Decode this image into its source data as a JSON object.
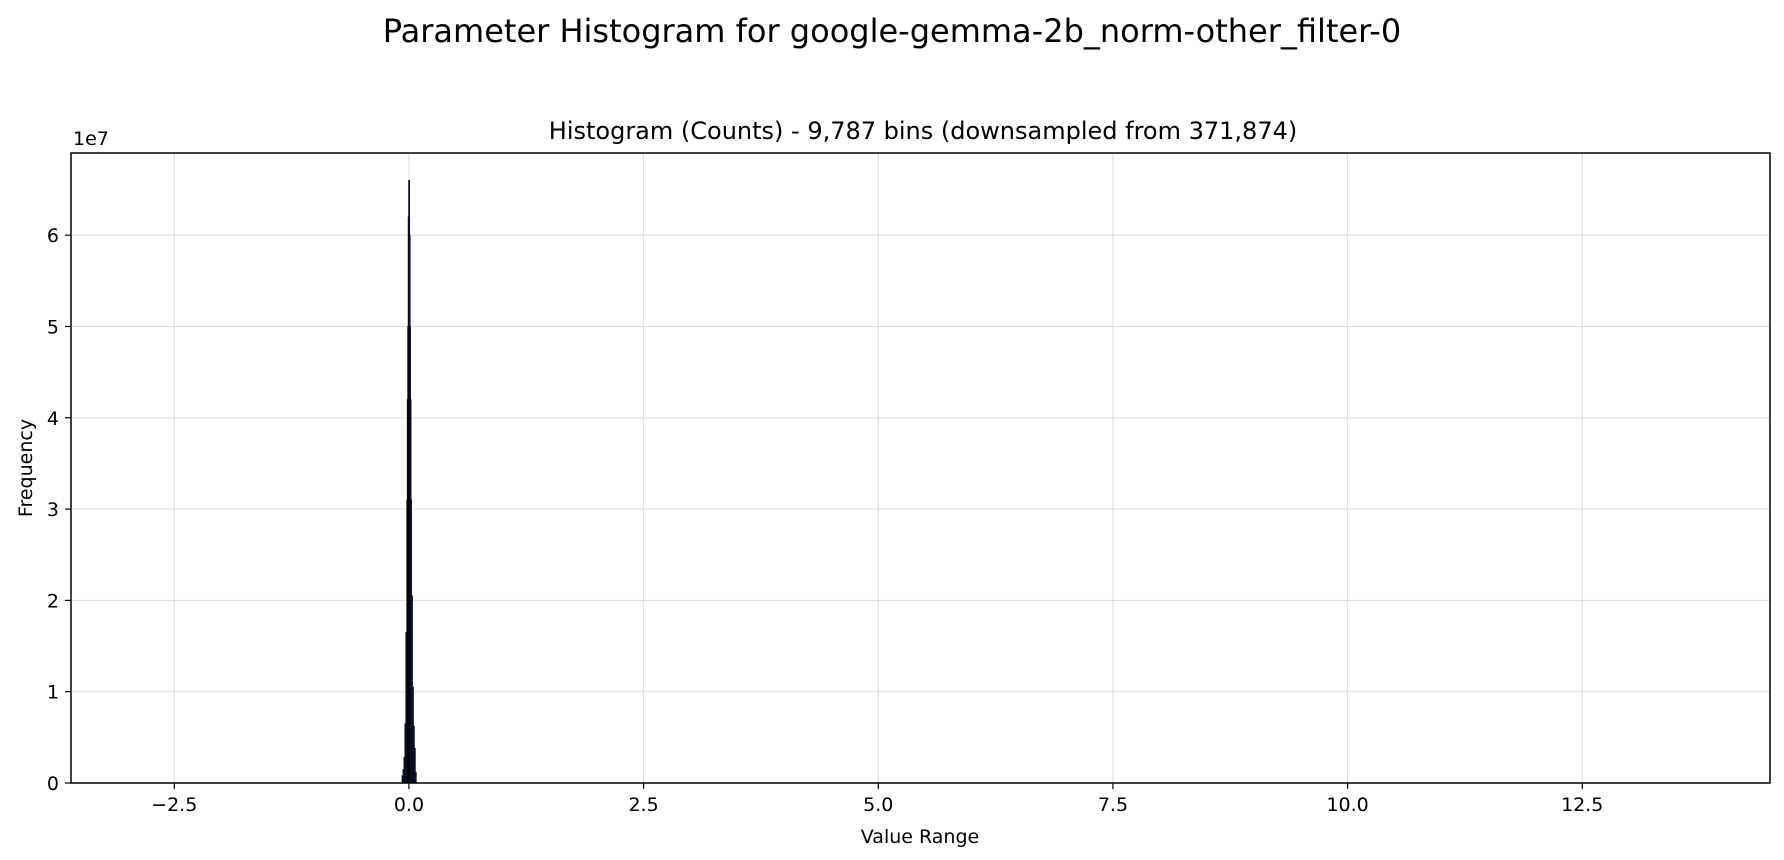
{
  "figure": {
    "suptitle": "Parameter Histogram for google-gemma-2b_norm-other_filter-0"
  },
  "chart_data": {
    "type": "bar",
    "title": "Histogram (Counts) - 9,787 bins (downsampled from 371,874)",
    "xlabel": "Value Range",
    "ylabel": "Frequency",
    "y_offset_label": "1e7",
    "xlim": [
      -3.6,
      14.5
    ],
    "ylim": [
      0,
      69000000
    ],
    "x_ticks": [
      -2.5,
      0.0,
      2.5,
      5.0,
      7.5,
      10.0,
      12.5
    ],
    "x_tick_labels": [
      "−2.5",
      "0.0",
      "2.5",
      "5.0",
      "7.5",
      "10.0",
      "12.5"
    ],
    "y_ticks": [
      0,
      10000000,
      20000000,
      30000000,
      40000000,
      50000000,
      60000000
    ],
    "y_tick_labels": [
      "0",
      "1",
      "2",
      "3",
      "4",
      "5",
      "6"
    ],
    "grid": true,
    "bar_color": "#1f2a5a",
    "edge_color": "#000000",
    "x": [
      -0.07,
      -0.06,
      -0.05,
      -0.04,
      -0.03,
      -0.02,
      -0.015,
      -0.01,
      -0.005,
      0.0,
      0.005,
      0.01,
      0.015,
      0.02,
      0.03,
      0.04,
      0.05,
      0.06,
      0.07
    ],
    "values": [
      800000,
      1500000,
      2800000,
      6500000,
      16500000,
      31000000,
      42000000,
      50000000,
      62000000,
      66000000,
      60000000,
      50000000,
      42000000,
      31000000,
      20500000,
      10500000,
      6200000,
      3800000,
      1200000
    ]
  }
}
